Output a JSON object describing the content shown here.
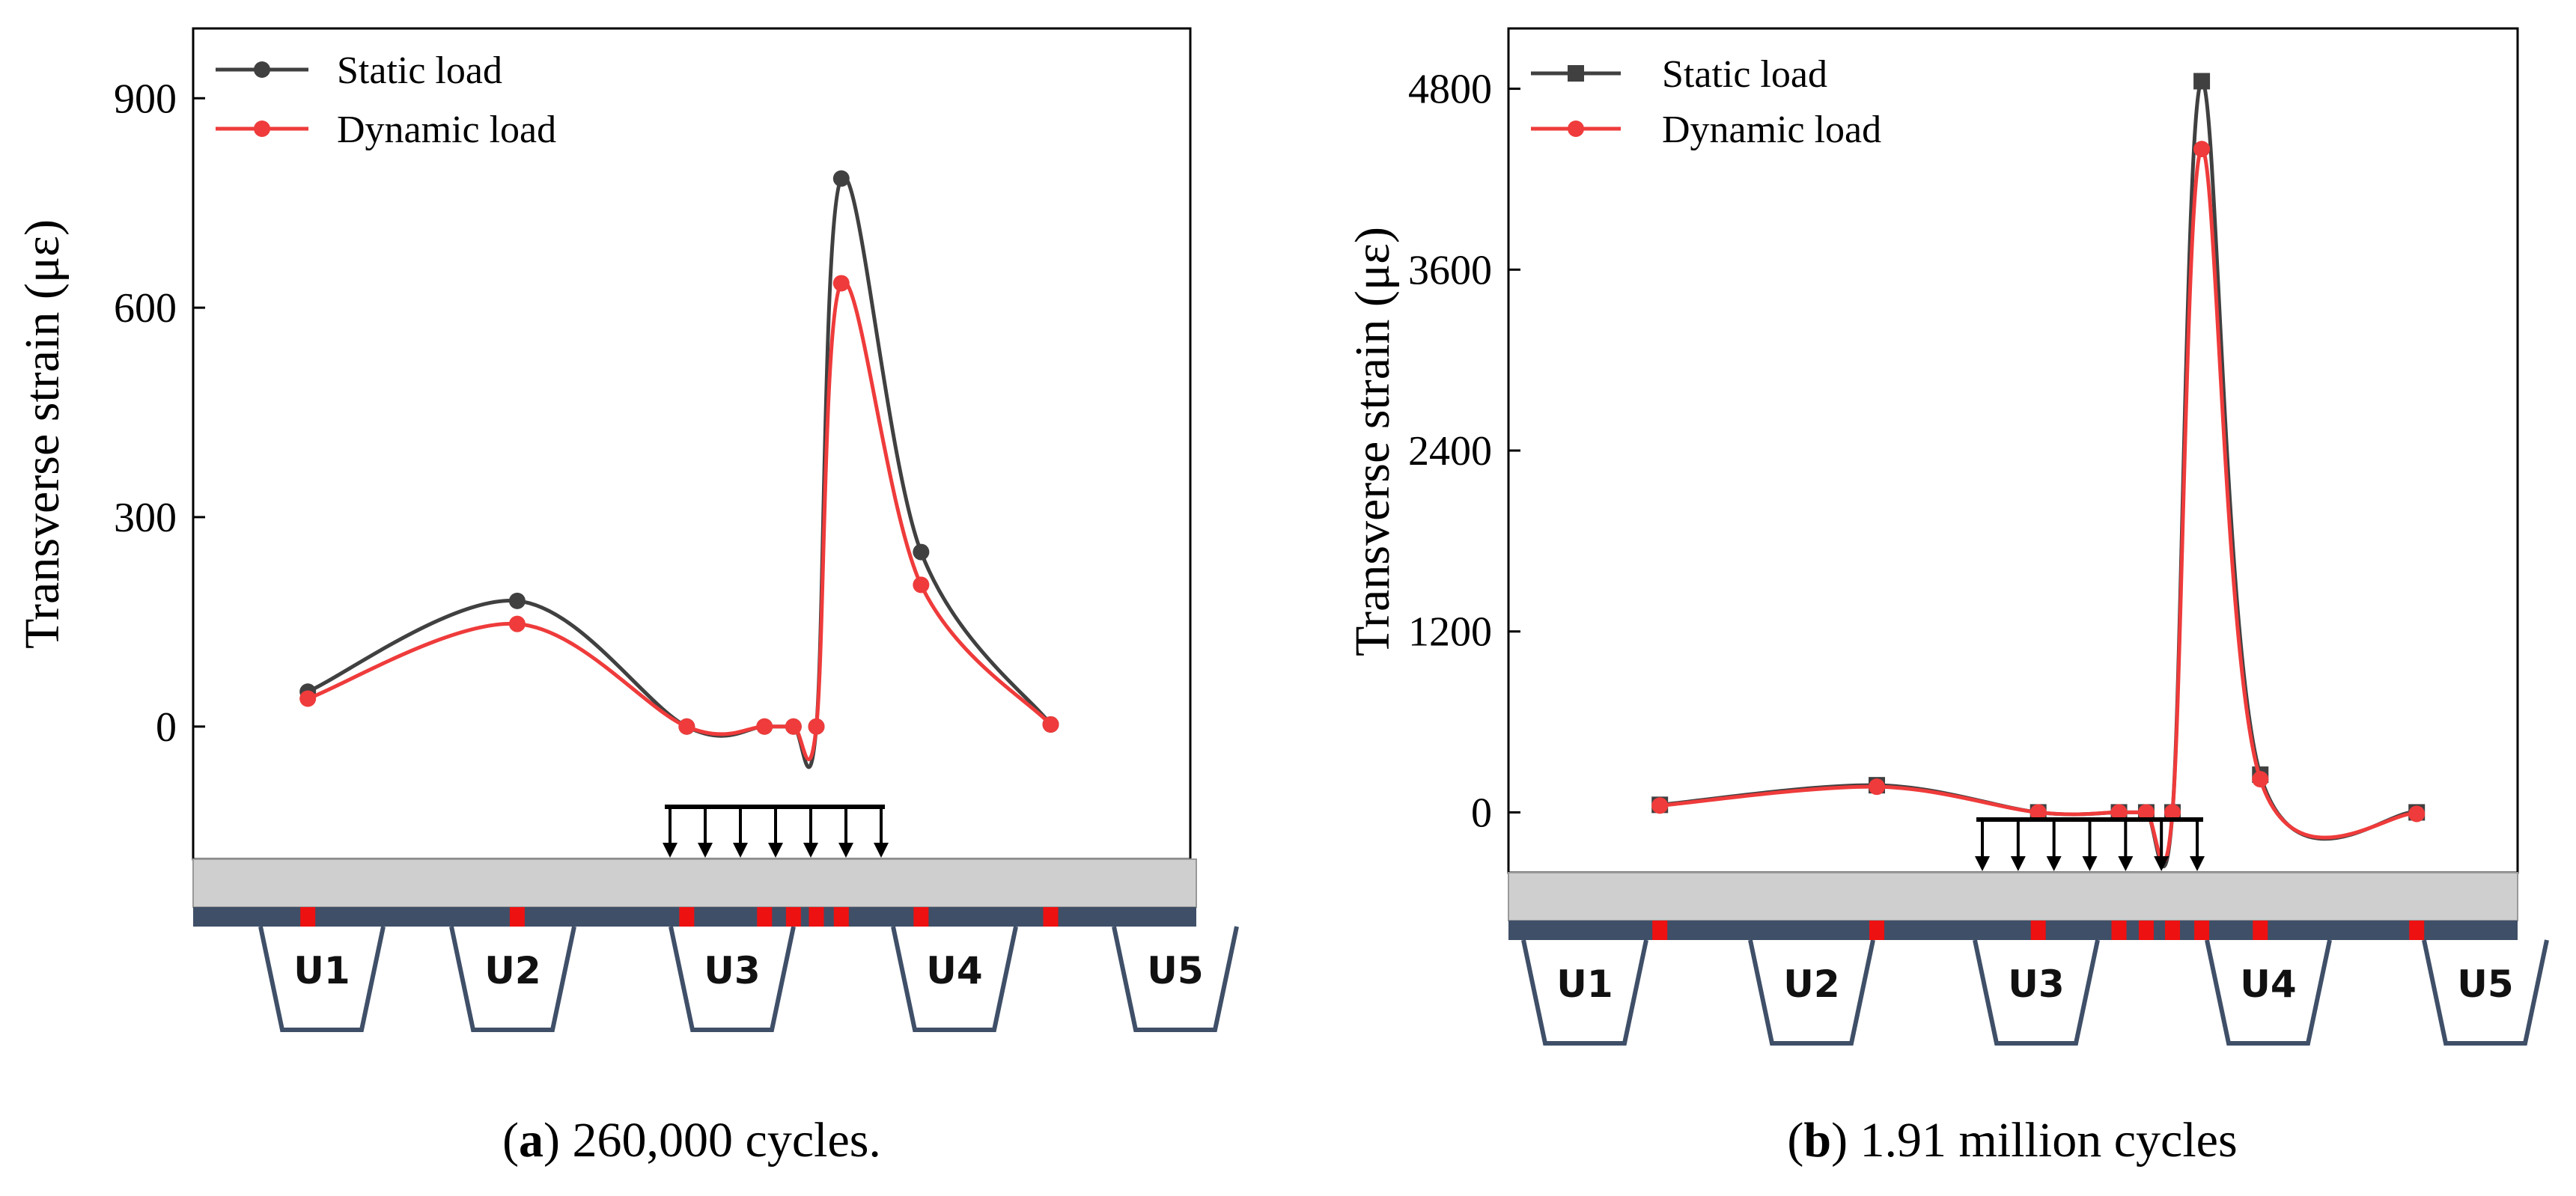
{
  "colors": {
    "static": "#404040",
    "dynamic": "#ef3b3b",
    "sensor": "#ee1111",
    "deck_top": "#cfcfcf",
    "deck_plate": "#3f4f68",
    "rib_stroke": "#3f4f68",
    "load_arrow": "#000000"
  },
  "captions": {
    "a_label": "a",
    "a_text": " 260,000 cycles.",
    "b_label": "b",
    "b_text": " 1.91 million cycles"
  },
  "rib_labels": [
    "U1",
    "U2",
    "U3",
    "U4",
    "U5"
  ],
  "chart_data": [
    {
      "type": "line",
      "panel": "a",
      "ylabel": "Transverse strain (με)",
      "xlabel": "",
      "ylim": [
        -190,
        1000
      ],
      "xlim": [
        0,
        100
      ],
      "yticks": [
        0,
        300,
        600,
        900
      ],
      "ytick_labels": [
        "0",
        "300",
        "600",
        "900"
      ],
      "legend_position": "top-left",
      "grid": false,
      "series": [
        {
          "name": "Static load",
          "marker": "circle",
          "x": [
            11.5,
            32.5,
            49.5,
            57.3,
            60.2,
            62.5,
            65.0,
            73.0,
            86.0
          ],
          "values": [
            50,
            180,
            0,
            0,
            0,
            0,
            785,
            250,
            3
          ]
        },
        {
          "name": "Dynamic load",
          "marker": "circle",
          "x": [
            11.5,
            32.5,
            49.5,
            57.3,
            60.2,
            62.5,
            65.0,
            73.0,
            86.0
          ],
          "values": [
            40,
            147,
            0,
            0,
            0,
            0,
            635,
            203,
            3
          ]
        }
      ]
    },
    {
      "type": "line",
      "panel": "b",
      "ylabel": "Transverse strain (με)",
      "xlabel": "",
      "ylim": [
        -400,
        5200
      ],
      "xlim": [
        0,
        100
      ],
      "yticks": [
        0,
        1200,
        2400,
        3600,
        4800
      ],
      "ytick_labels": [
        "0",
        "1200",
        "2400",
        "3600",
        "4800"
      ],
      "legend_position": "top-left",
      "grid": false,
      "series": [
        {
          "name": "Static load",
          "marker": "square",
          "x": [
            15.0,
            36.5,
            52.5,
            60.5,
            63.2,
            65.8,
            68.7,
            74.5,
            90.0
          ],
          "values": [
            50,
            180,
            0,
            0,
            0,
            0,
            4850,
            250,
            0
          ]
        },
        {
          "name": "Dynamic load",
          "marker": "circle",
          "x": [
            15.0,
            36.5,
            52.5,
            60.5,
            63.2,
            65.8,
            68.7,
            74.5,
            90.0
          ],
          "values": [
            45,
            170,
            0,
            0,
            0,
            0,
            4400,
            220,
            -10
          ]
        }
      ]
    }
  ]
}
